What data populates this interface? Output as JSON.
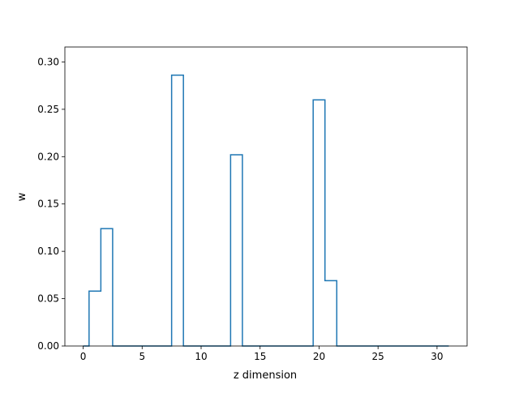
{
  "chart_data": {
    "type": "line",
    "style": "step-mid",
    "title": "",
    "xlabel": "z dimension",
    "ylabel": "w",
    "xlim": [
      -1.55,
      32.55
    ],
    "ylim": [
      0,
      0.3
    ],
    "grid": false,
    "legend": "none",
    "colors": {
      "series": "#1f77b4"
    },
    "x_ticks": [
      0,
      5,
      10,
      15,
      20,
      25,
      30
    ],
    "x_tick_labels": [
      "0",
      "5",
      "10",
      "15",
      "20",
      "25",
      "30"
    ],
    "y_ticks": [
      0.0,
      0.05,
      0.1,
      0.15,
      0.2,
      0.25,
      0.3
    ],
    "y_tick_labels": [
      "0.00",
      "0.05",
      "0.10",
      "0.15",
      "0.20",
      "0.25",
      "0.30"
    ],
    "series": [
      {
        "x": [
          0,
          1,
          2,
          3,
          4,
          5,
          6,
          7,
          8,
          9,
          10,
          11,
          12,
          13,
          14,
          15,
          16,
          17,
          18,
          19,
          20,
          21,
          22,
          23,
          24,
          25,
          26,
          27,
          28,
          29,
          30,
          31
        ],
        "values": [
          0,
          0.058,
          0.124,
          0,
          0,
          0,
          0,
          0,
          0.286,
          0,
          0,
          0,
          0,
          0.202,
          0,
          0,
          0,
          0,
          0,
          0,
          0.26,
          0.069,
          0,
          0,
          0,
          0,
          0,
          0,
          0,
          0,
          0,
          0
        ]
      }
    ]
  }
}
